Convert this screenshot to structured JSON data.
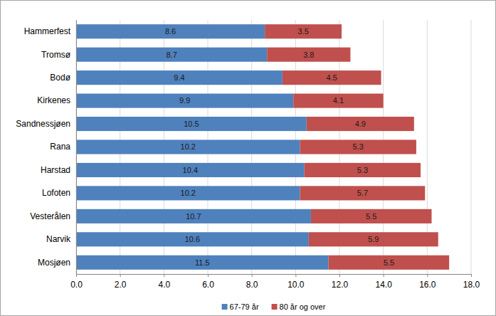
{
  "chart_data": {
    "type": "bar",
    "orientation": "horizontal",
    "stacked": true,
    "data_labels": true,
    "grid": true,
    "legend": "bottom",
    "categories": [
      "Hammerfest",
      "Tromsø",
      "Bodø",
      "Kirkenes",
      "Sandnessjøen",
      "Rana",
      "Harstad",
      "Lofoten",
      "Vesterålen",
      "Narvik",
      "Mosjøen"
    ],
    "series": [
      {
        "name": "67-79 år",
        "color": "#4f81bd",
        "values": [
          8.6,
          8.7,
          9.4,
          9.9,
          10.5,
          10.2,
          10.4,
          10.2,
          10.7,
          10.6,
          11.5
        ]
      },
      {
        "name": "80 år og over",
        "color": "#c0504d",
        "values": [
          3.5,
          3.8,
          4.5,
          4.1,
          4.9,
          5.3,
          5.3,
          5.7,
          5.5,
          5.9,
          5.5
        ]
      }
    ],
    "xlim": [
      0,
      18
    ],
    "xticks": [
      {
        "value": 0,
        "label": "0.0"
      },
      {
        "value": 2,
        "label": "2.0"
      },
      {
        "value": 4,
        "label": "4.0"
      },
      {
        "value": 6,
        "label": "6.0"
      },
      {
        "value": 8,
        "label": "8.0"
      },
      {
        "value": 10,
        "label": "10.0"
      },
      {
        "value": 12,
        "label": "12.0"
      },
      {
        "value": 14,
        "label": "14.0"
      },
      {
        "value": 16,
        "label": "16.0"
      },
      {
        "value": 18,
        "label": "18.0"
      }
    ]
  }
}
